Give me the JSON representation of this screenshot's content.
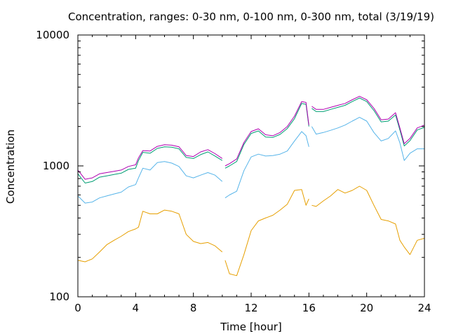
{
  "chart_data": {
    "type": "line",
    "title": "Concentration, ranges: 0-30 nm, 0-100 nm, 0-300 nm, total (3/19/19)",
    "xlabel": "Time [hour]",
    "ylabel": "Concentration",
    "xlim": [
      0,
      24
    ],
    "ylim": [
      100,
      10000
    ],
    "yscale": "log",
    "grid": false,
    "legend": "none",
    "x_ticks": [
      "0",
      "4",
      "8",
      "12",
      "16",
      "20",
      "24"
    ],
    "y_ticks": [
      "100",
      "1000",
      "10000"
    ],
    "gaps": [
      [
        10.0,
        10.2
      ],
      [
        16.0,
        16.2
      ]
    ],
    "x": [
      0,
      0.5,
      1,
      1.5,
      2,
      2.5,
      3,
      3.5,
      4,
      4.2,
      4.5,
      5,
      5.5,
      6,
      6.5,
      7,
      7.5,
      8,
      8.5,
      9,
      9.5,
      10,
      10.2,
      10.5,
      11,
      11.5,
      12,
      12.5,
      13,
      13.5,
      14,
      14.5,
      15,
      15.5,
      15.8,
      16,
      16.2,
      16.5,
      17,
      17.5,
      18,
      18.5,
      19,
      19.5,
      20,
      20.5,
      21,
      21.5,
      22,
      22.3,
      22.6,
      23,
      23.5,
      24
    ],
    "series": [
      {
        "color": "#b000b0",
        "values": [
          930,
          790,
          810,
          870,
          890,
          910,
          930,
          990,
          1020,
          1150,
          1310,
          1300,
          1410,
          1450,
          1440,
          1400,
          1200,
          1180,
          1280,
          1330,
          1240,
          1140,
          1000,
          1040,
          1130,
          1510,
          1830,
          1920,
          1730,
          1700,
          1800,
          2000,
          2400,
          3100,
          3050,
          2050,
          2850,
          2700,
          2700,
          2800,
          2900,
          3000,
          3200,
          3400,
          3200,
          2750,
          2250,
          2280,
          2550,
          1950,
          1480,
          1620,
          1950,
          2050
        ]
      },
      {
        "color": "#009e73",
        "values": [
          870,
          740,
          760,
          820,
          840,
          860,
          880,
          940,
          960,
          1100,
          1270,
          1250,
          1360,
          1400,
          1390,
          1350,
          1160,
          1140,
          1220,
          1280,
          1190,
          1100,
          960,
          1000,
          1080,
          1460,
          1770,
          1850,
          1660,
          1650,
          1740,
          1930,
          2300,
          3000,
          2950,
          2000,
          2750,
          2600,
          2600,
          2700,
          2800,
          2900,
          3100,
          3300,
          3100,
          2650,
          2170,
          2200,
          2450,
          1880,
          1420,
          1560,
          1880,
          1970
        ]
      },
      {
        "color": "#56b4e9",
        "values": [
          590,
          520,
          530,
          570,
          590,
          610,
          630,
          690,
          720,
          810,
          960,
          930,
          1060,
          1080,
          1050,
          990,
          840,
          810,
          850,
          890,
          850,
          760,
          570,
          600,
          640,
          920,
          1170,
          1230,
          1190,
          1200,
          1230,
          1300,
          1550,
          1830,
          1700,
          1400,
          2000,
          1750,
          1800,
          1870,
          1950,
          2050,
          2200,
          2350,
          2200,
          1800,
          1550,
          1620,
          1850,
          1500,
          1100,
          1250,
          1350,
          1350
        ]
      },
      {
        "color": "#e69f00",
        "values": [
          190,
          185,
          195,
          220,
          250,
          270,
          290,
          315,
          330,
          340,
          450,
          430,
          430,
          460,
          450,
          430,
          300,
          265,
          255,
          260,
          245,
          220,
          190,
          150,
          145,
          210,
          320,
          380,
          400,
          420,
          460,
          510,
          650,
          660,
          500,
          560,
          500,
          490,
          540,
          590,
          660,
          620,
          650,
          700,
          650,
          500,
          390,
          380,
          360,
          270,
          240,
          210,
          270,
          280
        ]
      }
    ]
  }
}
